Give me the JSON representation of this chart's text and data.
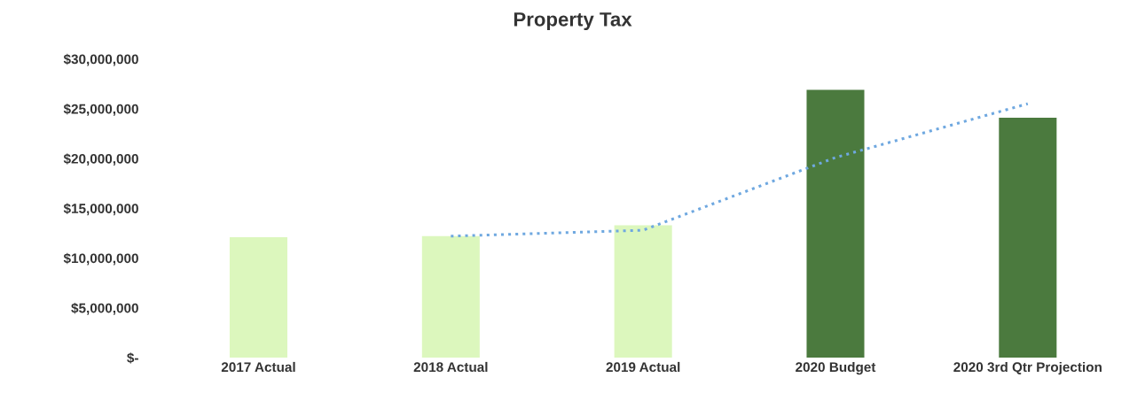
{
  "chart_data": {
    "type": "bar",
    "title": "Property Tax",
    "categories": [
      "2017 Actual",
      "2018 Actual",
      "2019 Actual",
      "2020 Budget",
      "2020 3rd Qtr Projection"
    ],
    "series": [
      {
        "values": [
          12100000,
          12200000,
          13300000,
          26900000,
          24100000
        ],
        "colors": [
          "#dcf7bd",
          "#dcf7bd",
          "#dcf7bd",
          "#4b7a3e",
          "#4b7a3e"
        ]
      },
      {
        "type": "line",
        "values": [
          null,
          12200000,
          12800000,
          20100000,
          25500000
        ],
        "color": "#6fa8e0",
        "line_style": "dotted",
        "marker": "none"
      }
    ],
    "ylim": [
      0,
      30000000
    ],
    "yticks": [
      {
        "value": 0,
        "label": "$-"
      },
      {
        "value": 5000000,
        "label": "$5,000,000"
      },
      {
        "value": 10000000,
        "label": "$10,000,000"
      },
      {
        "value": 15000000,
        "label": "$15,000,000"
      },
      {
        "value": 20000000,
        "label": "$20,000,000"
      },
      {
        "value": 25000000,
        "label": "$25,000,000"
      },
      {
        "value": 30000000,
        "label": "$30,000,000"
      }
    ],
    "grid": false,
    "legend": false
  }
}
